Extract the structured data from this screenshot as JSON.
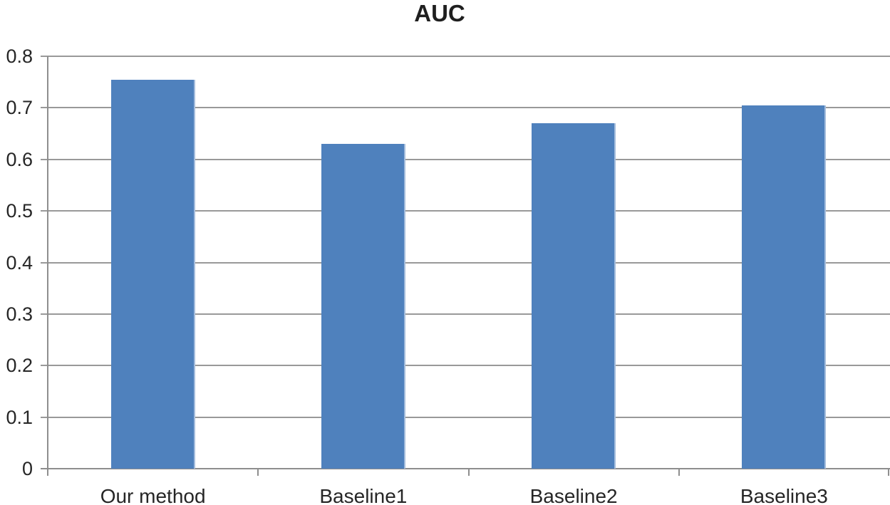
{
  "chart_data": {
    "type": "bar",
    "title": "AUC",
    "categories": [
      "Our method",
      "Baseline1",
      "Baseline2",
      "Baseline3"
    ],
    "values": [
      0.755,
      0.63,
      0.67,
      0.705
    ],
    "xlabel": "",
    "ylabel": "",
    "ylim": [
      0,
      0.8
    ],
    "ytick_step": 0.1,
    "ytick_labels": [
      "0",
      "0.1",
      "0.2",
      "0.3",
      "0.4",
      "0.5",
      "0.6",
      "0.7",
      "0.8"
    ],
    "grid": true,
    "legend": false,
    "bar_color": "#4f81bd",
    "bar_highlight_color": "#a3bcdc",
    "gridline_color": "#999999",
    "axis_color": "#8e8e8e",
    "text_color": "#262626",
    "title_color": "#1f1f1f",
    "background_color": "#ffffff"
  }
}
